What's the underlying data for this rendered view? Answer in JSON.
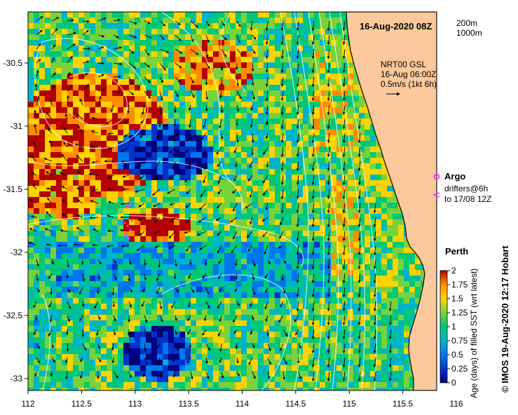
{
  "map": {
    "title": "16-Aug-2020 08Z",
    "depth_labels": [
      "200m",
      "1000m"
    ],
    "current_info": [
      "NRT00 GSL",
      "16-Aug 06:00Z",
      "0.5m/s (1kt 6h)"
    ],
    "legend": {
      "argo_label": "Argo",
      "drifters_line1": "drifters@6h",
      "drifters_line2": "to 17/08 12Z",
      "argo_color": "#ff33ff",
      "drifter_color": "#ff33ff"
    },
    "city": "Perth",
    "credit": "© IMOS 19-Aug-2020 12:17 Hobart",
    "colorbar": {
      "title": "Age (days) of filled SST (wrt latest)",
      "ticks": [
        "0",
        "0.25",
        "0.5",
        "0.75",
        "1",
        "1.25",
        "1.5",
        "1.75",
        "2"
      ],
      "colors": [
        "#000080",
        "#0033cc",
        "#0077ee",
        "#00b4c8",
        "#00c878",
        "#78d23c",
        "#ffd200",
        "#ff8c00",
        "#b40000"
      ]
    },
    "lon_ticks": [
      "112",
      "112.5",
      "113",
      "113.5",
      "114",
      "114.5",
      "115",
      "115.5",
      "116"
    ],
    "lat_ticks": [
      "-30.5",
      "-31",
      "-31.5",
      "-32",
      "-32.5",
      "-33"
    ],
    "land_color": "#fbc99b"
  }
}
